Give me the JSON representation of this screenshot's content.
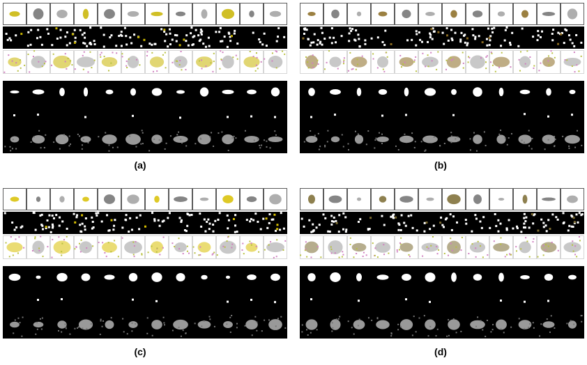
{
  "figure": {
    "panels": [
      {
        "caption": "(a)",
        "accent": "#c8b400"
      },
      {
        "caption": "(b)",
        "accent": "#8a6a20"
      },
      {
        "caption": "(c)",
        "accent": "#d8c000"
      },
      {
        "caption": "(d)",
        "accent": "#7a6a30"
      }
    ],
    "colors": {
      "mask_black": "#000000",
      "frame": "#333333",
      "paper": "#ffffff",
      "noise_yellow": "#b8c040",
      "noise_pink": "#d080c0",
      "object_gray": "#9a9a9a"
    }
  }
}
